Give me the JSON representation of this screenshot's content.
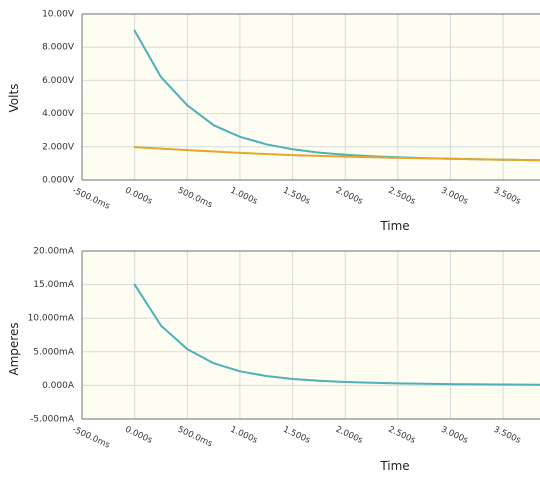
{
  "chart_data": [
    {
      "type": "line",
      "xlabel": "Time",
      "ylabel": "Volts",
      "ylim": [
        0,
        10
      ],
      "xlim": [
        -0.5,
        3.85
      ],
      "x_ticks": [
        -0.5,
        0,
        0.5,
        1,
        1.5,
        2,
        2.5,
        3,
        3.5
      ],
      "x_tick_labels": [
        "-500.0ms",
        "0.000s",
        "500.0ms",
        "1.000s",
        "1.500s",
        "2.000s",
        "2.500s",
        "3.000s",
        "3.500s"
      ],
      "y_ticks": [
        0,
        2,
        4,
        6,
        8,
        10
      ],
      "y_tick_labels": [
        "0.000V",
        "2.000V",
        "4.000V",
        "6.000V",
        "8.000V",
        "10.00V"
      ],
      "grid": true,
      "series": [
        {
          "color": "#4fb0b8",
          "x": [
            0,
            0.25,
            0.5,
            0.75,
            1,
            1.25,
            1.5,
            1.75,
            2,
            2.25,
            2.5,
            2.75,
            3,
            3.25,
            3.5,
            3.75,
            3.85
          ],
          "y": [
            9.0,
            6.2,
            4.5,
            3.3,
            2.6,
            2.15,
            1.85,
            1.65,
            1.52,
            1.43,
            1.37,
            1.32,
            1.28,
            1.25,
            1.22,
            1.2,
            1.19
          ]
        },
        {
          "color": "#e3a72f",
          "x": [
            0,
            0.5,
            1,
            1.5,
            2,
            2.5,
            3,
            3.5,
            3.85
          ],
          "y": [
            1.98,
            1.8,
            1.63,
            1.5,
            1.41,
            1.33,
            1.28,
            1.22,
            1.19
          ]
        }
      ]
    },
    {
      "type": "line",
      "xlabel": "Time",
      "ylabel": "Amperes",
      "ylim": [
        -5,
        20
      ],
      "xlim": [
        -0.5,
        3.85
      ],
      "x_ticks": [
        -0.5,
        0,
        0.5,
        1,
        1.5,
        2,
        2.5,
        3,
        3.5
      ],
      "x_tick_labels": [
        "-500.0ms",
        "0.000s",
        "500.0ms",
        "1.000s",
        "1.500s",
        "2.000s",
        "2.500s",
        "3.000s",
        "3.500s"
      ],
      "y_ticks": [
        -5,
        0,
        5,
        10,
        15,
        20
      ],
      "y_tick_labels": [
        "-5.000mA",
        "0.000A",
        "5.000mA",
        "10.000mA",
        "15.00mA",
        "20.00mA"
      ],
      "grid": true,
      "series": [
        {
          "color": "#4fb0b8",
          "x": [
            0,
            0.25,
            0.5,
            0.75,
            1,
            1.25,
            1.5,
            1.75,
            2,
            2.5,
            3,
            3.5,
            3.85
          ],
          "y": [
            15.0,
            8.9,
            5.4,
            3.3,
            2.1,
            1.4,
            0.95,
            0.68,
            0.5,
            0.3,
            0.2,
            0.13,
            0.1
          ]
        }
      ]
    }
  ]
}
